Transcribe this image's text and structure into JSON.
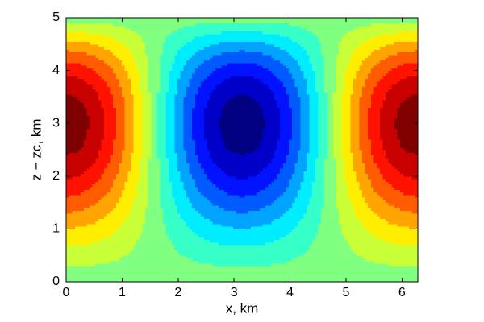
{
  "chart_data": {
    "type": "contour",
    "xlabel": "x, km",
    "ylabel": "z − zc, km",
    "xlim": [
      0,
      6.2832
    ],
    "ylim": [
      0,
      5
    ],
    "xticks": [
      0,
      1,
      2,
      3,
      4,
      5,
      6
    ],
    "yticks": [
      0,
      1,
      2,
      3,
      4,
      5
    ],
    "colormap": "jet",
    "levels": [
      -1.05,
      -0.91,
      -0.77,
      -0.63,
      -0.49,
      -0.35,
      -0.21,
      -0.07,
      0.07,
      0.21,
      0.35,
      0.49,
      0.63,
      0.77,
      0.91,
      1.05
    ],
    "x": [
      0,
      0.2618,
      0.5236,
      0.7854,
      1.0472,
      1.309,
      1.5708,
      1.8326,
      2.0944,
      2.3562,
      2.618,
      2.8798,
      3.1416,
      3.4034,
      3.6652,
      3.927,
      4.1888,
      4.4506,
      4.7124,
      4.9742,
      5.236,
      5.4978,
      5.7596,
      6.0214,
      6.2832
    ],
    "y": [
      0,
      0.25,
      0.5,
      0.75,
      1,
      1.25,
      1.5,
      1.75,
      2,
      2.25,
      2.5,
      2.75,
      3,
      3.25,
      3.5,
      3.75,
      4,
      4.25,
      4.5,
      4.75,
      5
    ],
    "z": [
      [
        0,
        0,
        0,
        0,
        0,
        0,
        0,
        0,
        0,
        0,
        0,
        0,
        0,
        0,
        0,
        0,
        0,
        0,
        0,
        0,
        0,
        0,
        0,
        0,
        0
      ],
      [
        0.05,
        0.05,
        0.05,
        0.04,
        0.03,
        0.01,
        0,
        -0.01,
        -0.03,
        -0.04,
        -0.05,
        -0.05,
        -0.05,
        -0.05,
        -0.05,
        -0.04,
        -0.03,
        -0.01,
        0,
        0.01,
        0.03,
        0.04,
        0.05,
        0.05,
        0.05
      ],
      [
        0.14,
        0.13,
        0.12,
        0.1,
        0.07,
        0.04,
        0,
        -0.04,
        -0.07,
        -0.1,
        -0.12,
        -0.13,
        -0.14,
        -0.13,
        -0.12,
        -0.1,
        -0.07,
        -0.04,
        0,
        0.04,
        0.07,
        0.1,
        0.12,
        0.13,
        0.14
      ],
      [
        0.24,
        0.23,
        0.21,
        0.17,
        0.12,
        0.06,
        0,
        -0.06,
        -0.12,
        -0.17,
        -0.21,
        -0.23,
        -0.24,
        -0.23,
        -0.21,
        -0.17,
        -0.12,
        -0.06,
        0,
        0.06,
        0.12,
        0.17,
        0.21,
        0.23,
        0.24
      ],
      [
        0.35,
        0.33,
        0.3,
        0.24,
        0.17,
        0.09,
        0,
        -0.09,
        -0.17,
        -0.24,
        -0.3,
        -0.33,
        -0.35,
        -0.33,
        -0.3,
        -0.24,
        -0.17,
        -0.09,
        0,
        0.09,
        0.17,
        0.24,
        0.3,
        0.33,
        0.35
      ],
      [
        0.46,
        0.45,
        0.4,
        0.33,
        0.23,
        0.12,
        0,
        -0.12,
        -0.23,
        -0.33,
        -0.4,
        -0.45,
        -0.46,
        -0.45,
        -0.4,
        -0.33,
        -0.23,
        -0.12,
        0,
        0.12,
        0.23,
        0.33,
        0.4,
        0.45,
        0.46
      ],
      [
        0.58,
        0.56,
        0.5,
        0.41,
        0.29,
        0.15,
        0,
        -0.15,
        -0.29,
        -0.41,
        -0.5,
        -0.56,
        -0.58,
        -0.56,
        -0.5,
        -0.41,
        -0.29,
        -0.15,
        0,
        0.15,
        0.29,
        0.41,
        0.5,
        0.56,
        0.58
      ],
      [
        0.69,
        0.66,
        0.59,
        0.49,
        0.34,
        0.18,
        0,
        -0.18,
        -0.34,
        -0.49,
        -0.59,
        -0.66,
        -0.69,
        -0.66,
        -0.59,
        -0.49,
        -0.34,
        -0.18,
        0,
        0.18,
        0.34,
        0.49,
        0.59,
        0.66,
        0.69
      ],
      [
        0.79,
        0.76,
        0.68,
        0.56,
        0.39,
        0.2,
        0,
        -0.2,
        -0.39,
        -0.56,
        -0.68,
        -0.76,
        -0.79,
        -0.76,
        -0.68,
        -0.56,
        -0.39,
        -0.2,
        0,
        0.2,
        0.39,
        0.56,
        0.68,
        0.76,
        0.79
      ],
      [
        0.87,
        0.84,
        0.76,
        0.62,
        0.44,
        0.23,
        0,
        -0.23,
        -0.44,
        -0.62,
        -0.76,
        -0.84,
        -0.87,
        -0.84,
        -0.76,
        -0.62,
        -0.44,
        -0.23,
        0,
        0.23,
        0.44,
        0.62,
        0.76,
        0.84,
        0.87
      ],
      [
        0.94,
        0.91,
        0.81,
        0.67,
        0.47,
        0.24,
        0,
        -0.24,
        -0.47,
        -0.67,
        -0.81,
        -0.91,
        -0.94,
        -0.91,
        -0.81,
        -0.67,
        -0.47,
        -0.24,
        0,
        0.24,
        0.47,
        0.67,
        0.81,
        0.91,
        0.94
      ],
      [
        0.99,
        0.95,
        0.85,
        0.7,
        0.49,
        0.26,
        0,
        -0.26,
        -0.49,
        -0.7,
        -0.85,
        -0.95,
        -0.99,
        -0.95,
        -0.85,
        -0.7,
        -0.49,
        -0.26,
        0,
        0.26,
        0.49,
        0.7,
        0.85,
        0.95,
        0.99
      ],
      [
        1,
        0.97,
        0.87,
        0.71,
        0.5,
        0.26,
        0,
        -0.26,
        -0.5,
        -0.71,
        -0.87,
        -0.97,
        -1,
        -0.97,
        -0.87,
        -0.71,
        -0.5,
        -0.26,
        0,
        0.26,
        0.5,
        0.71,
        0.87,
        0.97,
        1
      ],
      [
        0.98,
        0.95,
        0.85,
        0.7,
        0.49,
        0.25,
        0,
        -0.25,
        -0.49,
        -0.7,
        -0.85,
        -0.95,
        -0.98,
        -0.95,
        -0.85,
        -0.7,
        -0.49,
        -0.25,
        0,
        0.25,
        0.49,
        0.7,
        0.85,
        0.95,
        0.98
      ],
      [
        0.93,
        0.9,
        0.81,
        0.66,
        0.47,
        0.24,
        0,
        -0.24,
        -0.47,
        -0.66,
        -0.81,
        -0.9,
        -0.93,
        -0.9,
        -0.81,
        -0.66,
        -0.47,
        -0.24,
        0,
        0.24,
        0.47,
        0.66,
        0.81,
        0.9,
        0.93
      ],
      [
        0.85,
        0.82,
        0.74,
        0.6,
        0.43,
        0.22,
        0,
        -0.22,
        -0.43,
        -0.6,
        -0.74,
        -0.82,
        -0.85,
        -0.82,
        -0.74,
        -0.6,
        -0.43,
        -0.22,
        0,
        0.22,
        0.43,
        0.6,
        0.74,
        0.82,
        0.85
      ],
      [
        0.73,
        0.71,
        0.63,
        0.52,
        0.37,
        0.19,
        0,
        -0.19,
        -0.37,
        -0.52,
        -0.63,
        -0.71,
        -0.73,
        -0.71,
        -0.63,
        -0.52,
        -0.37,
        -0.19,
        0,
        0.19,
        0.37,
        0.52,
        0.63,
        0.71,
        0.73
      ],
      [
        0.58,
        0.56,
        0.5,
        0.41,
        0.29,
        0.15,
        0,
        -0.15,
        -0.29,
        -0.41,
        -0.5,
        -0.56,
        -0.58,
        -0.56,
        -0.5,
        -0.41,
        -0.29,
        -0.15,
        0,
        0.15,
        0.29,
        0.41,
        0.5,
        0.56,
        0.58
      ],
      [
        0.41,
        0.39,
        0.35,
        0.29,
        0.2,
        0.11,
        0,
        -0.11,
        -0.2,
        -0.29,
        -0.35,
        -0.39,
        -0.41,
        -0.39,
        -0.35,
        -0.29,
        -0.2,
        -0.11,
        0,
        0.11,
        0.2,
        0.29,
        0.35,
        0.39,
        0.41
      ],
      [
        0.21,
        0.2,
        0.18,
        0.15,
        0.1,
        0.05,
        0,
        -0.05,
        -0.1,
        -0.15,
        -0.18,
        -0.2,
        -0.21,
        -0.2,
        -0.18,
        -0.15,
        -0.1,
        -0.05,
        0,
        0.05,
        0.1,
        0.15,
        0.18,
        0.2,
        0.21
      ],
      [
        0,
        0,
        0,
        0,
        0,
        0,
        0,
        0,
        0,
        0,
        0,
        0,
        0,
        0,
        0,
        0,
        0,
        0,
        0,
        0,
        0,
        0,
        0,
        0,
        0
      ]
    ]
  }
}
